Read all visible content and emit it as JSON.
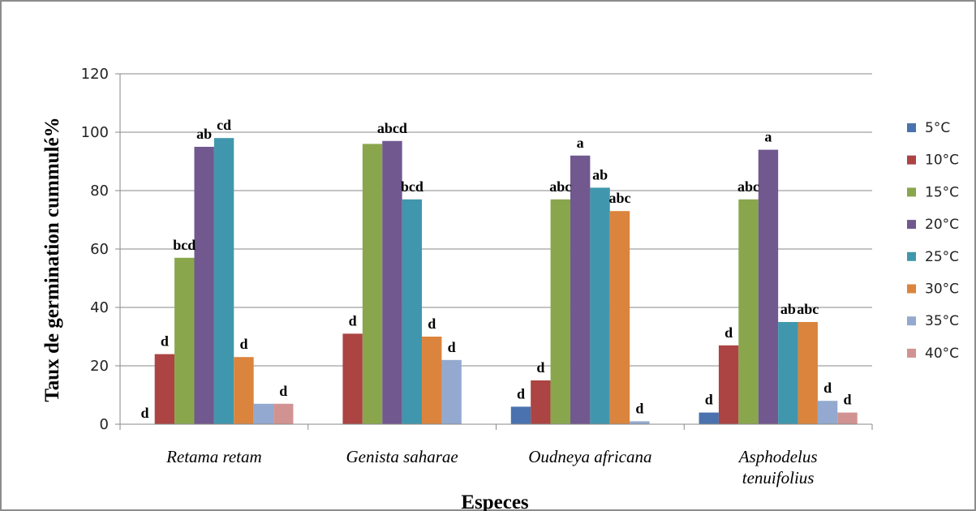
{
  "chart_data": {
    "type": "bar",
    "title": "",
    "xlabel": "Especes",
    "ylabel": "Taux de germination   cummulé%",
    "ylim": [
      0,
      120
    ],
    "yticks": [
      0,
      20,
      40,
      60,
      80,
      100,
      120
    ],
    "grid": true,
    "legend_position": "right",
    "categories": [
      [
        "Retama retam"
      ],
      [
        "Genista saharae"
      ],
      [
        "Oudneya africana"
      ],
      [
        "Asphodelus",
        "tenuifolius"
      ]
    ],
    "series": [
      {
        "name": "5°C",
        "color": "#4a72ae",
        "values": [
          0,
          0,
          6,
          4
        ],
        "sig": [
          "d",
          "",
          "d",
          "d"
        ]
      },
      {
        "name": "10°C",
        "color": "#ab4442",
        "values": [
          24,
          31,
          15,
          27
        ],
        "sig": [
          "d",
          "d",
          "d",
          "d"
        ]
      },
      {
        "name": "15°C",
        "color": "#89a64d",
        "values": [
          57,
          96,
          77,
          77
        ],
        "sig": [
          "bcd",
          "",
          "abc",
          "abc"
        ]
      },
      {
        "name": "20°C",
        "color": "#71588f",
        "values": [
          95,
          97,
          92,
          94
        ],
        "sig": [
          "ab",
          "abcd",
          "a",
          "a"
        ]
      },
      {
        "name": "25°C",
        "color": "#4097ad",
        "values": [
          98,
          77,
          81,
          35
        ],
        "sig": [
          "cd",
          "bcd",
          "ab",
          "ab"
        ]
      },
      {
        "name": "30°C",
        "color": "#db843d",
        "values": [
          23,
          30,
          73,
          35
        ],
        "sig": [
          "d",
          "d",
          "abc",
          "abc"
        ]
      },
      {
        "name": "35°C",
        "color": "#93a9cf",
        "values": [
          7,
          22,
          1,
          8
        ],
        "sig": [
          "",
          "d",
          "d",
          "d"
        ]
      },
      {
        "name": "40°C",
        "color": "#d19392",
        "values": [
          7,
          0,
          0,
          4
        ],
        "sig": [
          "d",
          "",
          "",
          "d"
        ]
      }
    ]
  }
}
